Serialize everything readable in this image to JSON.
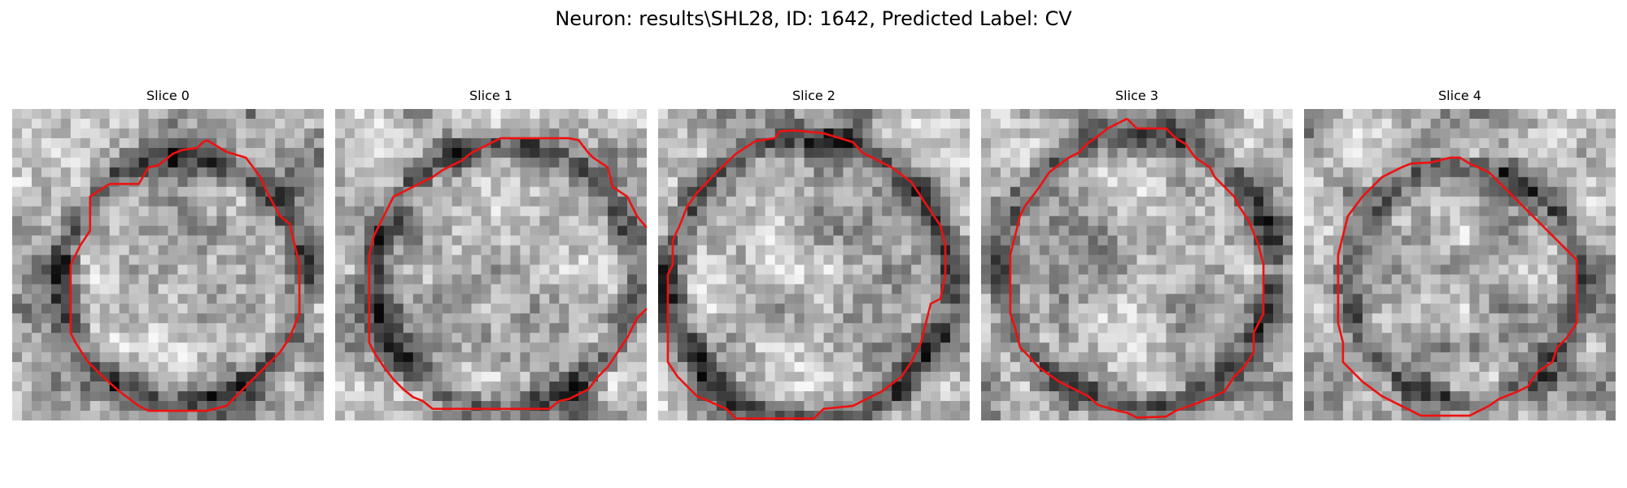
{
  "title": "Neuron: results\\SHL28, ID: 1642, Predicted Label: CV",
  "slices": [
    {
      "label": "Slice 0"
    },
    {
      "label": "Slice 1"
    },
    {
      "label": "Slice 2"
    },
    {
      "label": "Slice 3"
    },
    {
      "label": "Slice 4"
    }
  ],
  "colors": {
    "contour": "#ee1111",
    "background": "#ffffff"
  },
  "image": {
    "colormap": "gray",
    "grid": "32x32 pixel patch"
  }
}
